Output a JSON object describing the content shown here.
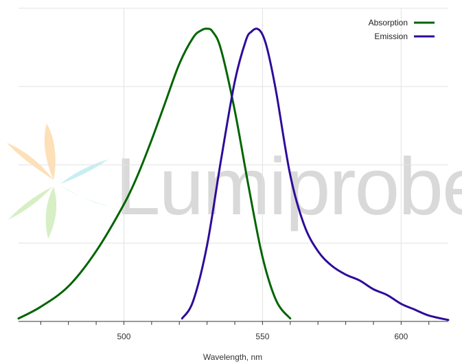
{
  "chart_data": {
    "type": "line",
    "xlabel": "Wavelength, nm",
    "ylabel": "",
    "xlim": [
      462,
      617
    ],
    "ylim": [
      0,
      1.07
    ],
    "grid": true,
    "legend_position": "top-right",
    "x_ticks": [
      500,
      550,
      600
    ],
    "series": [
      {
        "name": "Absorption",
        "color": "#006400",
        "x": [
          462,
          470,
          480,
          490,
          500,
          505,
          510,
          515,
          520,
          525,
          528,
          530,
          532,
          535,
          540,
          545,
          550,
          555,
          560
        ],
        "y": [
          0.01,
          0.05,
          0.12,
          0.24,
          0.4,
          0.5,
          0.62,
          0.75,
          0.88,
          0.97,
          0.995,
          1.0,
          0.99,
          0.93,
          0.72,
          0.46,
          0.22,
          0.07,
          0.01
        ]
      },
      {
        "name": "Emission",
        "color": "#2e0a9a",
        "x": [
          521,
          525,
          530,
          535,
          540,
          544,
          546,
          548,
          550,
          552,
          555,
          560,
          565,
          570,
          575,
          580,
          585,
          590,
          595,
          600,
          605,
          610,
          617
        ],
        "y": [
          0.01,
          0.07,
          0.26,
          0.55,
          0.82,
          0.96,
          0.99,
          1.0,
          0.98,
          0.92,
          0.78,
          0.5,
          0.33,
          0.24,
          0.19,
          0.16,
          0.14,
          0.11,
          0.09,
          0.06,
          0.04,
          0.02,
          0.005
        ]
      }
    ]
  },
  "watermark": {
    "text": "Lumiprobe",
    "petal_colors": [
      "#fde0b8",
      "#c8eef3",
      "#d6efc4"
    ]
  }
}
